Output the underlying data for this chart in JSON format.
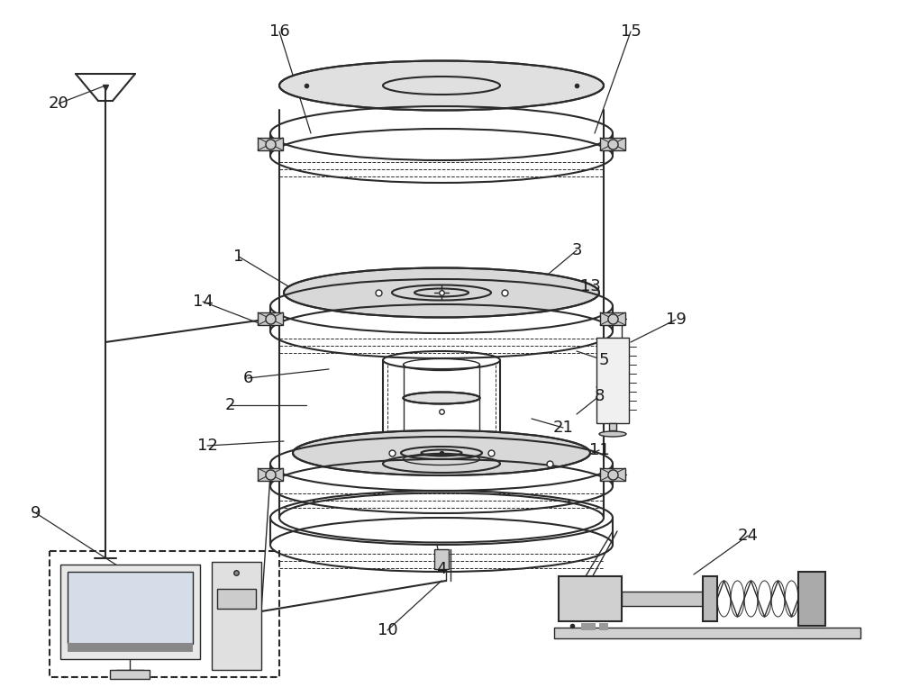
{
  "bg_color": "#ffffff",
  "line_color": "#2a2a2a",
  "label_color": "#1a1a1a",
  "fig_width": 10.0,
  "fig_height": 7.73,
  "dpi": 100
}
